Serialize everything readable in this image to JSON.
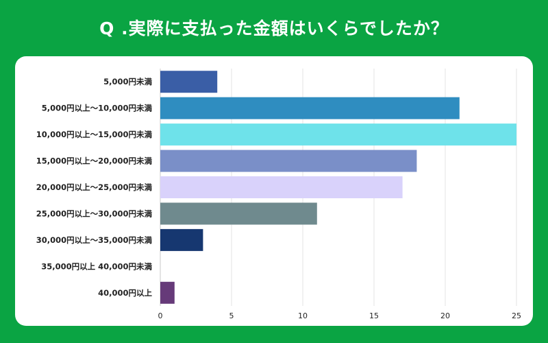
{
  "chart_data": {
    "type": "bar",
    "orientation": "horizontal",
    "title": "Q .実際に支払った金額はいくらでしたか？",
    "categories": [
      "5,000円未満",
      "5,000円以上〜10,000円未満",
      "10,000円以上〜15,000円未満",
      "15,000円以上〜20,000円未満",
      "20,000円以上〜25,000円未満",
      "25,000円以上〜30,000円未満",
      "30,000円以上〜35,000円未満",
      "35,000円以上 40,000円未満",
      "40,000円以上"
    ],
    "values": [
      4,
      21,
      25,
      18,
      17,
      11,
      3,
      0,
      1
    ],
    "colors": [
      "#3a5ea6",
      "#2f8dc0",
      "#6ee2ea",
      "#7a8fc8",
      "#d9d2fb",
      "#6f8a8e",
      "#163770",
      "#cccccc",
      "#663a79"
    ],
    "xlim": [
      0,
      25
    ],
    "xticks": [
      0,
      5,
      10,
      15,
      20,
      25
    ],
    "xlabel": "",
    "ylabel": "",
    "grid": true,
    "legend": false
  }
}
